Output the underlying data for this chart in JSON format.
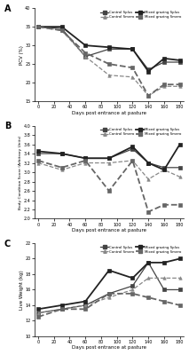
{
  "x": [
    0,
    30,
    60,
    90,
    120,
    140,
    160,
    180
  ],
  "pA": {
    "control_splus": [
      35,
      34.5,
      27.0,
      29.0,
      29.0,
      23.5,
      25.5,
      25.5
    ],
    "control_smero": [
      35,
      34.0,
      27.0,
      22.0,
      21.5,
      16.5,
      19.0,
      19.0
    ],
    "mixed_splus": [
      35,
      35.0,
      30.0,
      29.5,
      29.0,
      23.0,
      26.5,
      26.0
    ],
    "mixed_smero": [
      35,
      34.0,
      28.0,
      25.0,
      24.0,
      16.5,
      19.5,
      19.5
    ],
    "ylim": [
      15,
      40
    ],
    "yticks": [
      15,
      20,
      25,
      30,
      35,
      40
    ],
    "ylabel": "PCV (%)"
  },
  "pB": {
    "control_splus": [
      3.4,
      3.4,
      3.3,
      3.3,
      3.5,
      3.2,
      3.1,
      3.1
    ],
    "control_smero": [
      3.2,
      3.05,
      3.2,
      3.2,
      3.25,
      2.85,
      3.05,
      2.9
    ],
    "mixed_splus": [
      3.45,
      3.4,
      3.3,
      3.3,
      3.55,
      3.2,
      3.05,
      3.6
    ],
    "mixed_smero": [
      3.25,
      3.1,
      3.25,
      2.6,
      3.25,
      2.15,
      2.3,
      2.3
    ],
    "ylim": [
      2.0,
      4.0
    ],
    "yticks": [
      2.0,
      2.2,
      2.4,
      2.6,
      2.8,
      3.0,
      3.2,
      3.4,
      3.6,
      3.8,
      4.0
    ],
    "ylabel": "Body Condition Score (Arbitrary Units)"
  },
  "pC": {
    "control_splus": [
      13.0,
      13.5,
      14.0,
      15.5,
      16.5,
      19.5,
      16.0,
      16.0
    ],
    "control_smero": [
      13.0,
      13.5,
      14.0,
      15.0,
      16.0,
      17.5,
      17.5,
      17.5
    ],
    "mixed_splus": [
      13.5,
      14.0,
      14.5,
      18.5,
      17.5,
      19.5,
      19.5,
      20.0
    ],
    "mixed_smero": [
      12.5,
      13.5,
      13.5,
      15.5,
      15.5,
      15.0,
      14.5,
      14.0
    ],
    "ylim": [
      10,
      22
    ],
    "yticks": [
      10,
      12,
      14,
      16,
      18,
      20,
      22
    ],
    "ylabel": "Live Weight (kg)"
  },
  "xlabel": "Days post entrance at pasture",
  "xticks": [
    0,
    20,
    40,
    60,
    80,
    100,
    120,
    140,
    160,
    180
  ],
  "panel_titles": [
    "A",
    "B",
    "C"
  ],
  "legend_labels": [
    "Control Splus",
    "Control Smero",
    "Mixed grazing Splus",
    "Mixed grazing Smero"
  ],
  "styles": {
    "control_splus": {
      "ls": "-",
      "marker": "s",
      "ms": 2.5,
      "color": "#444444",
      "lw": 0.9
    },
    "control_smero": {
      "ls": "--",
      "marker": "^",
      "ms": 2.5,
      "color": "#888888",
      "lw": 0.9
    },
    "mixed_splus": {
      "ls": "-",
      "marker": "s",
      "ms": 2.5,
      "color": "#222222",
      "lw": 1.3
    },
    "mixed_smero": {
      "ls": "--",
      "marker": "s",
      "ms": 2.5,
      "color": "#666666",
      "lw": 1.3
    }
  }
}
